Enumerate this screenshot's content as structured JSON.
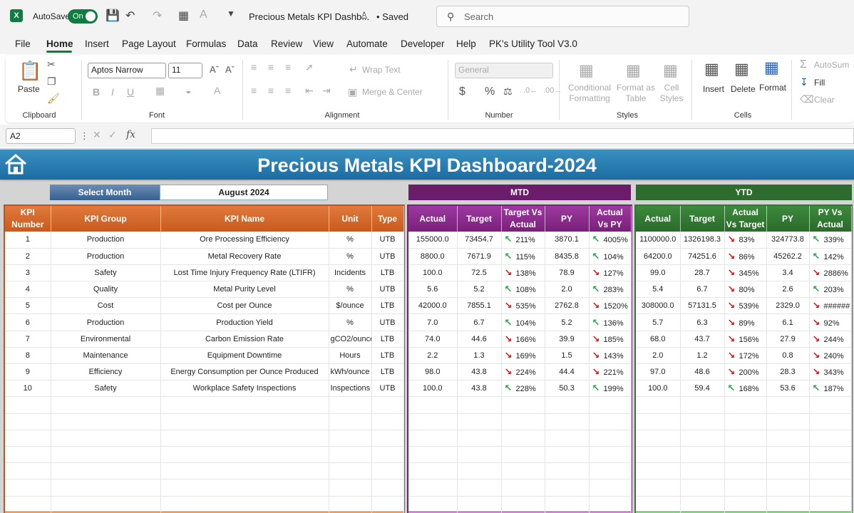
{
  "titlebar": {
    "logo": "X",
    "autosave_label": "AutoSave",
    "autosave_state": "On",
    "file_title": "Precious Metals KPI Dashb...",
    "saved_status": "• Saved",
    "search_placeholder": "Search"
  },
  "menu": [
    "File",
    "Home",
    "Insert",
    "Page Layout",
    "Formulas",
    "Data",
    "Review",
    "View",
    "Automate",
    "Developer",
    "Help",
    "PK's Utility Tool V3.0"
  ],
  "ribbon": {
    "clipboard": {
      "paste": "Paste",
      "label": "Clipboard"
    },
    "font": {
      "name": "Aptos Narrow",
      "size": "11",
      "label": "Font"
    },
    "alignment": {
      "wrap": "Wrap Text",
      "merge": "Merge & Center",
      "label": "Alignment"
    },
    "number": {
      "format": "General",
      "label": "Number"
    },
    "styles": {
      "conditional": "Conditional Formatting",
      "format_table": "Format as Table",
      "cell_styles": "Cell Styles",
      "label": "Styles"
    },
    "cells": {
      "insert": "Insert",
      "delete": "Delete",
      "format": "Format",
      "label": "Cells"
    },
    "editing": {
      "autosum": "AutoSum",
      "fill": "Fill",
      "clear": "Clear"
    }
  },
  "formula_bar": {
    "name_box": "A2",
    "fx": "fx",
    "value": ""
  },
  "dashboard": {
    "title": "Precious Metals KPI Dashboard-2024",
    "select_month_label": "Select Month",
    "select_month_value": "August 2024",
    "mtd_label": "MTD",
    "ytd_label": "YTD",
    "main_headers": [
      "KPI Number",
      "KPI Group",
      "KPI Name",
      "Unit",
      "Type"
    ],
    "mtd_headers": [
      "Actual",
      "Target",
      "Target Vs Actual",
      "PY",
      "Actual Vs PY"
    ],
    "ytd_headers": [
      "Actual",
      "Target",
      "Actual Vs Target",
      "PY",
      "PY Vs Actual"
    ],
    "colors": {
      "banner": "#1a6da3",
      "main": "#c85a1e",
      "mtd": "#7a1f7a",
      "ytd": "#2e6b2e",
      "up": "#1fa84a",
      "down": "#e01010"
    },
    "rows": [
      {
        "num": "1",
        "group": "Production",
        "name": "Ore Processing Efficiency",
        "unit": "%",
        "type": "UTB",
        "mtd_actual": "155000.0",
        "mtd_target": "73454.7",
        "mtd_tva": "211%",
        "mtd_tva_dir": "up",
        "mtd_py": "3870.1",
        "mtd_avp": "4005%",
        "mtd_avp_dir": "up",
        "ytd_actual": "1100000.0",
        "ytd_target": "1326198.3",
        "ytd_avt": "83%",
        "ytd_avt_dir": "down",
        "ytd_py": "324773.8",
        "ytd_pva": "339%",
        "ytd_pva_dir": "up"
      },
      {
        "num": "2",
        "group": "Production",
        "name": "Metal Recovery Rate",
        "unit": "%",
        "type": "UTB",
        "mtd_actual": "8800.0",
        "mtd_target": "7671.9",
        "mtd_tva": "115%",
        "mtd_tva_dir": "up",
        "mtd_py": "8435.8",
        "mtd_avp": "104%",
        "mtd_avp_dir": "up",
        "ytd_actual": "64200.0",
        "ytd_target": "74251.6",
        "ytd_avt": "86%",
        "ytd_avt_dir": "down",
        "ytd_py": "45262.2",
        "ytd_pva": "142%",
        "ytd_pva_dir": "up"
      },
      {
        "num": "3",
        "group": "Safety",
        "name": "Lost Time Injury Frequency Rate (LTIFR)",
        "unit": "Incidents",
        "type": "LTB",
        "mtd_actual": "100.0",
        "mtd_target": "72.5",
        "mtd_tva": "138%",
        "mtd_tva_dir": "down",
        "mtd_py": "78.9",
        "mtd_avp": "127%",
        "mtd_avp_dir": "down",
        "ytd_actual": "99.0",
        "ytd_target": "28.7",
        "ytd_avt": "345%",
        "ytd_avt_dir": "down",
        "ytd_py": "3.4",
        "ytd_pva": "2886%",
        "ytd_pva_dir": "down"
      },
      {
        "num": "4",
        "group": "Quality",
        "name": "Metal Purity Level",
        "unit": "%",
        "type": "UTB",
        "mtd_actual": "5.6",
        "mtd_target": "5.2",
        "mtd_tva": "108%",
        "mtd_tva_dir": "up",
        "mtd_py": "2.0",
        "mtd_avp": "283%",
        "mtd_avp_dir": "up",
        "ytd_actual": "5.4",
        "ytd_target": "6.7",
        "ytd_avt": "80%",
        "ytd_avt_dir": "down",
        "ytd_py": "2.6",
        "ytd_pva": "203%",
        "ytd_pva_dir": "up"
      },
      {
        "num": "5",
        "group": "Cost",
        "name": "Cost per Ounce",
        "unit": "$/ounce",
        "type": "LTB",
        "mtd_actual": "42000.0",
        "mtd_target": "7855.1",
        "mtd_tva": "535%",
        "mtd_tva_dir": "down",
        "mtd_py": "2762.8",
        "mtd_avp": "1520%",
        "mtd_avp_dir": "down",
        "ytd_actual": "308000.0",
        "ytd_target": "57131.5",
        "ytd_avt": "539%",
        "ytd_avt_dir": "down",
        "ytd_py": "2329.0",
        "ytd_pva": "######",
        "ytd_pva_dir": "down"
      },
      {
        "num": "6",
        "group": "Production",
        "name": "Production Yield",
        "unit": "%",
        "type": "UTB",
        "mtd_actual": "7.0",
        "mtd_target": "6.7",
        "mtd_tva": "104%",
        "mtd_tva_dir": "up",
        "mtd_py": "5.2",
        "mtd_avp": "136%",
        "mtd_avp_dir": "up",
        "ytd_actual": "5.7",
        "ytd_target": "6.3",
        "ytd_avt": "89%",
        "ytd_avt_dir": "down",
        "ytd_py": "6.1",
        "ytd_pva": "92%",
        "ytd_pva_dir": "down"
      },
      {
        "num": "7",
        "group": "Environmental",
        "name": "Carbon Emission Rate",
        "unit": "gCO2/ounce",
        "type": "LTB",
        "mtd_actual": "74.0",
        "mtd_target": "44.6",
        "mtd_tva": "166%",
        "mtd_tva_dir": "down",
        "mtd_py": "39.9",
        "mtd_avp": "185%",
        "mtd_avp_dir": "down",
        "ytd_actual": "68.0",
        "ytd_target": "43.7",
        "ytd_avt": "156%",
        "ytd_avt_dir": "down",
        "ytd_py": "27.9",
        "ytd_pva": "244%",
        "ytd_pva_dir": "down"
      },
      {
        "num": "8",
        "group": "Maintenance",
        "name": "Equipment Downtime",
        "unit": "Hours",
        "type": "LTB",
        "mtd_actual": "2.2",
        "mtd_target": "1.3",
        "mtd_tva": "169%",
        "mtd_tva_dir": "down",
        "mtd_py": "1.5",
        "mtd_avp": "143%",
        "mtd_avp_dir": "down",
        "ytd_actual": "2.0",
        "ytd_target": "1.2",
        "ytd_avt": "172%",
        "ytd_avt_dir": "down",
        "ytd_py": "0.8",
        "ytd_pva": "240%",
        "ytd_pva_dir": "down"
      },
      {
        "num": "9",
        "group": "Efficiency",
        "name": "Energy Consumption per Ounce Produced",
        "unit": "kWh/ounce",
        "type": "LTB",
        "mtd_actual": "98.0",
        "mtd_target": "43.8",
        "mtd_tva": "224%",
        "mtd_tva_dir": "down",
        "mtd_py": "44.4",
        "mtd_avp": "221%",
        "mtd_avp_dir": "down",
        "ytd_actual": "97.0",
        "ytd_target": "48.6",
        "ytd_avt": "200%",
        "ytd_avt_dir": "down",
        "ytd_py": "28.3",
        "ytd_pva": "343%",
        "ytd_pva_dir": "down"
      },
      {
        "num": "10",
        "group": "Safety",
        "name": "Workplace Safety Inspections",
        "unit": "Inspections",
        "type": "UTB",
        "mtd_actual": "100.0",
        "mtd_target": "43.8",
        "mtd_tva": "228%",
        "mtd_tva_dir": "up",
        "mtd_py": "50.3",
        "mtd_avp": "199%",
        "mtd_avp_dir": "up",
        "ytd_actual": "100.0",
        "ytd_target": "59.4",
        "ytd_avt": "168%",
        "ytd_avt_dir": "up",
        "ytd_py": "53.6",
        "ytd_pva": "187%",
        "ytd_pva_dir": "up"
      }
    ]
  }
}
